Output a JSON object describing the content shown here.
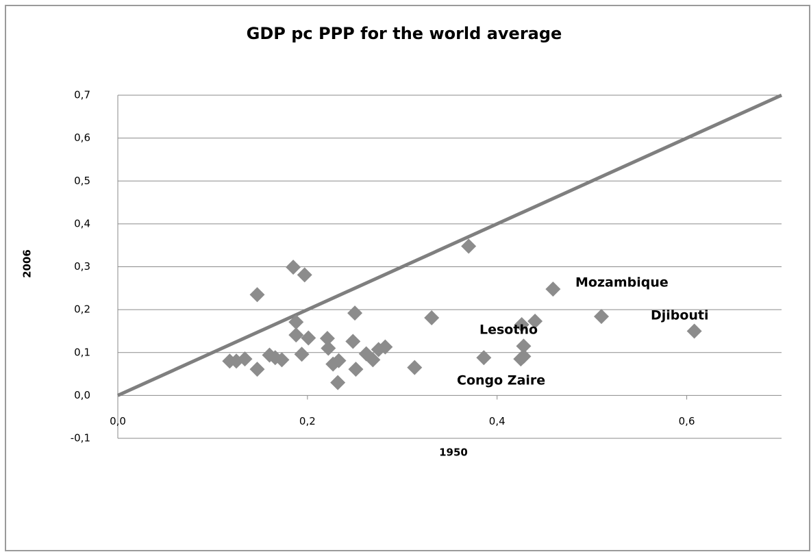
{
  "chart_data": {
    "type": "scatter",
    "title": "GDP pc PPP for the  world average",
    "x_label": "1950",
    "y_label": "2006",
    "xlim": [
      0,
      0.7
    ],
    "ylim": [
      -0.1,
      0.7
    ],
    "xticks": [
      {
        "value": 0,
        "label": "0,0"
      },
      {
        "value": 0.2,
        "label": "0,2"
      },
      {
        "value": 0.4,
        "label": "0,4"
      },
      {
        "value": 0.6,
        "label": "0,6"
      }
    ],
    "yticks": [
      {
        "value": -0.1,
        "label": "-0,1"
      },
      {
        "value": 0,
        "label": "0,0"
      },
      {
        "value": 0.1,
        "label": "0,1"
      },
      {
        "value": 0.2,
        "label": "0,2"
      },
      {
        "value": 0.3,
        "label": "0,3"
      },
      {
        "value": 0.4,
        "label": "0,4"
      },
      {
        "value": 0.5,
        "label": "0,5"
      },
      {
        "value": 0.6,
        "label": "0,6"
      },
      {
        "value": 0.7,
        "label": "0,7"
      }
    ],
    "grid": true,
    "color": "#8c8c8c",
    "x": [
      0.118,
      0.125,
      0.134,
      0.147,
      0.147,
      0.16,
      0.166,
      0.173,
      0.185,
      0.197,
      0.188,
      0.188,
      0.194,
      0.201,
      0.221,
      0.222,
      0.227,
      0.233,
      0.232,
      0.25,
      0.248,
      0.251,
      0.262,
      0.269,
      0.275,
      0.282,
      0.313,
      0.331,
      0.37,
      0.386,
      0.426,
      0.44,
      0.428,
      0.428,
      0.425,
      0.459,
      0.51,
      0.608
    ],
    "y": [
      0.08,
      0.08,
      0.085,
      0.061,
      0.235,
      0.094,
      0.088,
      0.083,
      0.299,
      0.281,
      0.171,
      0.141,
      0.096,
      0.134,
      0.133,
      0.11,
      0.073,
      0.081,
      0.03,
      0.192,
      0.126,
      0.061,
      0.097,
      0.083,
      0.107,
      0.113,
      0.065,
      0.181,
      0.348,
      0.088,
      0.165,
      0.173,
      0.115,
      0.091,
      0.085,
      0.248,
      0.184,
      0.15
    ],
    "reference_line": {
      "x": [
        0,
        0.7
      ],
      "y": [
        0,
        0.7
      ],
      "color": "#7f7f7f"
    },
    "annotations": [
      "Mozambique",
      "Djibouti",
      "Lesotho",
      "Congo Zaire"
    ]
  }
}
